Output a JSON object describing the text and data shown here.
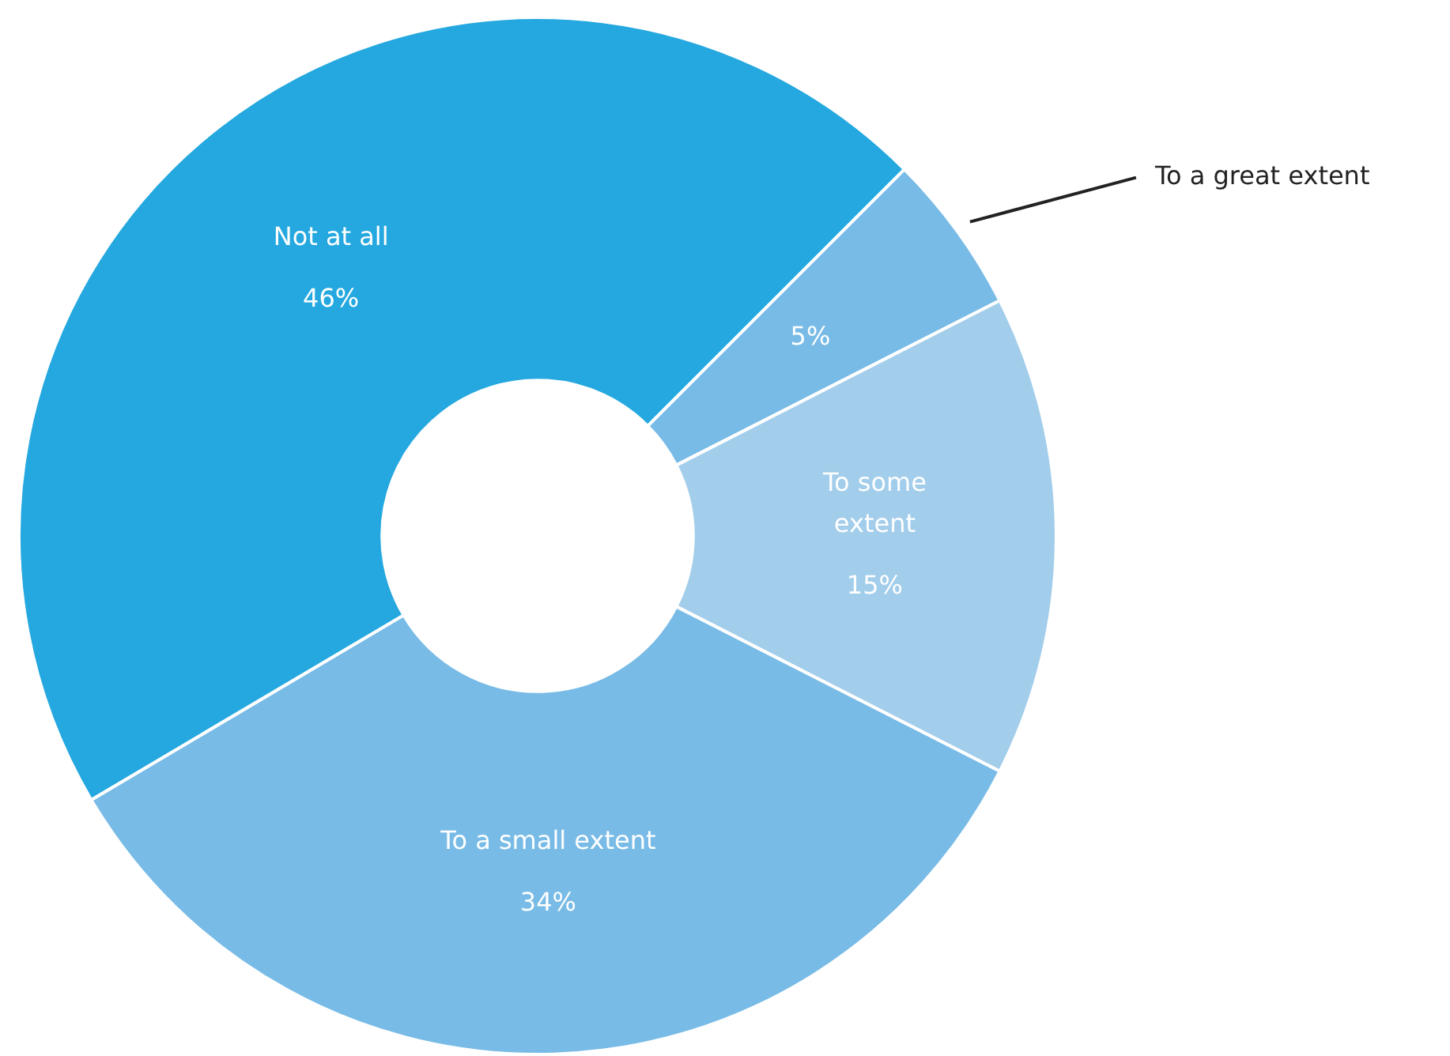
{
  "chart_data": {
    "type": "donut",
    "categories": [
      "To a great extent",
      "To some extent",
      "To a small extent",
      "Not at all"
    ],
    "values": [
      5,
      15,
      34,
      46
    ],
    "value_labels": [
      "5%",
      "15%",
      "34%",
      "46%"
    ],
    "colors": [
      "#78bbe6",
      "#a2cdeb",
      "#78bbe6",
      "#24a8df"
    ],
    "legend": false
  }
}
